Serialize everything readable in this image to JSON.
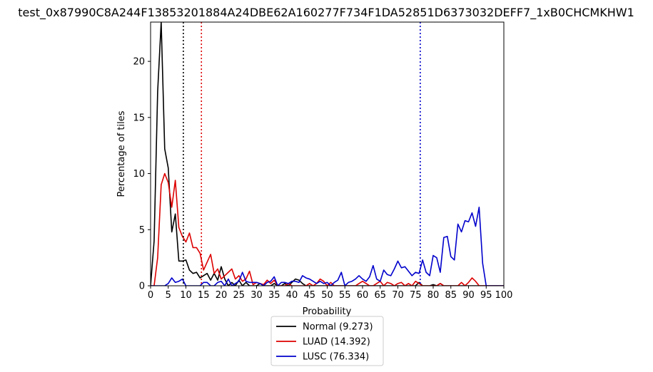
{
  "chart_data": {
    "type": "line",
    "title": "test_0x87990C8A244F13853201884A24DBE62A160277F734F1DA52851D6373032DEFF7_1xB0CHCMKHW1",
    "xlabel": "Probability",
    "ylabel": "Percentage of tiles",
    "xlim": [
      0,
      100
    ],
    "ylim": [
      0,
      23.5
    ],
    "xticks": [
      0,
      5,
      10,
      15,
      20,
      25,
      30,
      35,
      40,
      45,
      50,
      55,
      60,
      65,
      70,
      75,
      80,
      85,
      90,
      95,
      100
    ],
    "yticks": [
      0,
      5,
      10,
      15,
      20
    ],
    "legend_position": "below-center",
    "grid": false,
    "series": [
      {
        "name": "Normal (9.273)",
        "color": "#000000",
        "threshold": 9.273,
        "x": [
          0,
          1,
          2,
          3,
          4,
          5,
          6,
          7,
          8,
          9,
          10,
          11,
          12,
          13,
          14,
          15,
          16,
          17,
          18,
          19,
          20,
          21,
          22,
          23,
          24,
          25,
          26,
          27,
          28,
          29,
          30,
          31,
          32,
          33,
          34,
          35,
          36,
          37,
          38,
          39,
          40,
          41,
          42,
          43,
          44,
          45,
          46,
          47,
          48,
          49,
          50,
          55,
          60,
          65,
          70,
          75,
          76,
          77,
          78,
          79,
          80,
          81,
          82,
          83,
          84,
          85,
          90,
          95,
          100
        ],
        "y": [
          0,
          4,
          17.3,
          23.5,
          12.2,
          10.5,
          4.8,
          6.4,
          2.2,
          2.2,
          2.3,
          1.4,
          1.1,
          1.2,
          0.7,
          0.9,
          1.1,
          0.5,
          1.1,
          0.5,
          1.7,
          0.6,
          0,
          0.3,
          0,
          0.5,
          0,
          0.3,
          0,
          0,
          0,
          0.2,
          0,
          0,
          0,
          0.2,
          0,
          0,
          0.2,
          0,
          0.3,
          0.6,
          0.5,
          0.2,
          0,
          0,
          0,
          0,
          0,
          0,
          0,
          0,
          0,
          0,
          0,
          0,
          0.3,
          0,
          0,
          0,
          0.1,
          0,
          0.2,
          0,
          0,
          0,
          0,
          0,
          0
        ]
      },
      {
        "name": "LUAD (14.392)",
        "color": "#dd0000",
        "threshold": 14.392,
        "x": [
          0,
          1,
          2,
          3,
          4,
          5,
          6,
          7,
          8,
          9,
          10,
          11,
          12,
          13,
          14,
          15,
          16,
          17,
          18,
          19,
          20,
          21,
          22,
          23,
          24,
          25,
          26,
          27,
          28,
          29,
          30,
          31,
          32,
          33,
          34,
          35,
          36,
          37,
          38,
          39,
          40,
          41,
          42,
          43,
          44,
          45,
          46,
          47,
          48,
          49,
          50,
          51,
          52,
          53,
          54,
          55,
          56,
          57,
          58,
          59,
          60,
          61,
          62,
          63,
          64,
          65,
          66,
          67,
          68,
          69,
          70,
          71,
          72,
          73,
          74,
          75,
          76,
          77,
          78,
          79,
          80,
          81,
          82,
          83,
          84,
          85,
          86,
          87,
          88,
          89,
          90,
          91,
          92,
          93,
          94,
          95,
          100
        ],
        "y": [
          0,
          0,
          2.5,
          9,
          10,
          9.2,
          7,
          9.4,
          5.2,
          4.4,
          3.9,
          4.7,
          3.4,
          3.4,
          2.9,
          1.4,
          2.1,
          2.8,
          1.1,
          1.5,
          0.6,
          0.9,
          1.2,
          1.5,
          0.6,
          0.9,
          0.4,
          0.6,
          1.3,
          0.1,
          0.3,
          0.2,
          0.1,
          0.5,
          0.2,
          0.5,
          0,
          0,
          0,
          0.2,
          0,
          0,
          0,
          0,
          0,
          0.2,
          0,
          0.2,
          0.6,
          0.4,
          0,
          0.3,
          0,
          0,
          0,
          0,
          0,
          0,
          0,
          0.2,
          0.4,
          0.2,
          0,
          0,
          0.2,
          0.4,
          0,
          0.3,
          0.2,
          0,
          0.2,
          0.3,
          0,
          0.2,
          0,
          0.4,
          0.2,
          0,
          0,
          0,
          0,
          0,
          0.2,
          0,
          0,
          0,
          0,
          0,
          0.3,
          0,
          0.3,
          0.7,
          0.4,
          0,
          0,
          0,
          0
        ]
      },
      {
        "name": "LUSC (76.334)",
        "color": "#0000cc",
        "threshold": 76.334,
        "x": [
          0,
          1,
          2,
          3,
          4,
          5,
          6,
          7,
          8,
          9,
          10,
          11,
          12,
          13,
          14,
          15,
          16,
          17,
          18,
          19,
          20,
          21,
          22,
          23,
          24,
          25,
          26,
          27,
          28,
          29,
          30,
          31,
          32,
          33,
          34,
          35,
          36,
          37,
          38,
          39,
          40,
          41,
          42,
          43,
          44,
          45,
          46,
          47,
          48,
          49,
          50,
          51,
          52,
          53,
          54,
          55,
          56,
          57,
          58,
          59,
          60,
          61,
          62,
          63,
          64,
          65,
          66,
          67,
          68,
          69,
          70,
          71,
          72,
          73,
          74,
          75,
          76,
          77,
          78,
          79,
          80,
          81,
          82,
          83,
          84,
          85,
          86,
          87,
          88,
          89,
          90,
          91,
          92,
          93,
          94,
          95,
          100
        ],
        "y": [
          0,
          0,
          0,
          0,
          0,
          0.2,
          0.7,
          0.3,
          0.4,
          0.6,
          0,
          0,
          0,
          0,
          0,
          0.3,
          0.3,
          0,
          0,
          0.3,
          0.4,
          0,
          0.6,
          0,
          0.2,
          0.4,
          1.2,
          0.4,
          0.3,
          0.3,
          0.3,
          0.2,
          0,
          0.3,
          0.4,
          0.8,
          0,
          0.3,
          0.3,
          0.2,
          0.4,
          0.4,
          0.3,
          0.9,
          0.7,
          0.6,
          0.4,
          0.2,
          0.4,
          0.2,
          0.3,
          0,
          0.3,
          0.5,
          1.2,
          0,
          0.3,
          0.4,
          0.6,
          0.9,
          0.6,
          0.4,
          0.8,
          1.8,
          0.6,
          0.4,
          1.4,
          1,
          0.9,
          1.5,
          2.2,
          1.6,
          1.7,
          1.3,
          0.9,
          1.2,
          1.1,
          2.3,
          1.2,
          0.9,
          2.7,
          2.5,
          1.2,
          4.3,
          4.4,
          2.6,
          2.3,
          5.5,
          4.8,
          5.8,
          5.7,
          6.5,
          5.3,
          7,
          2,
          0,
          0
        ]
      }
    ]
  }
}
